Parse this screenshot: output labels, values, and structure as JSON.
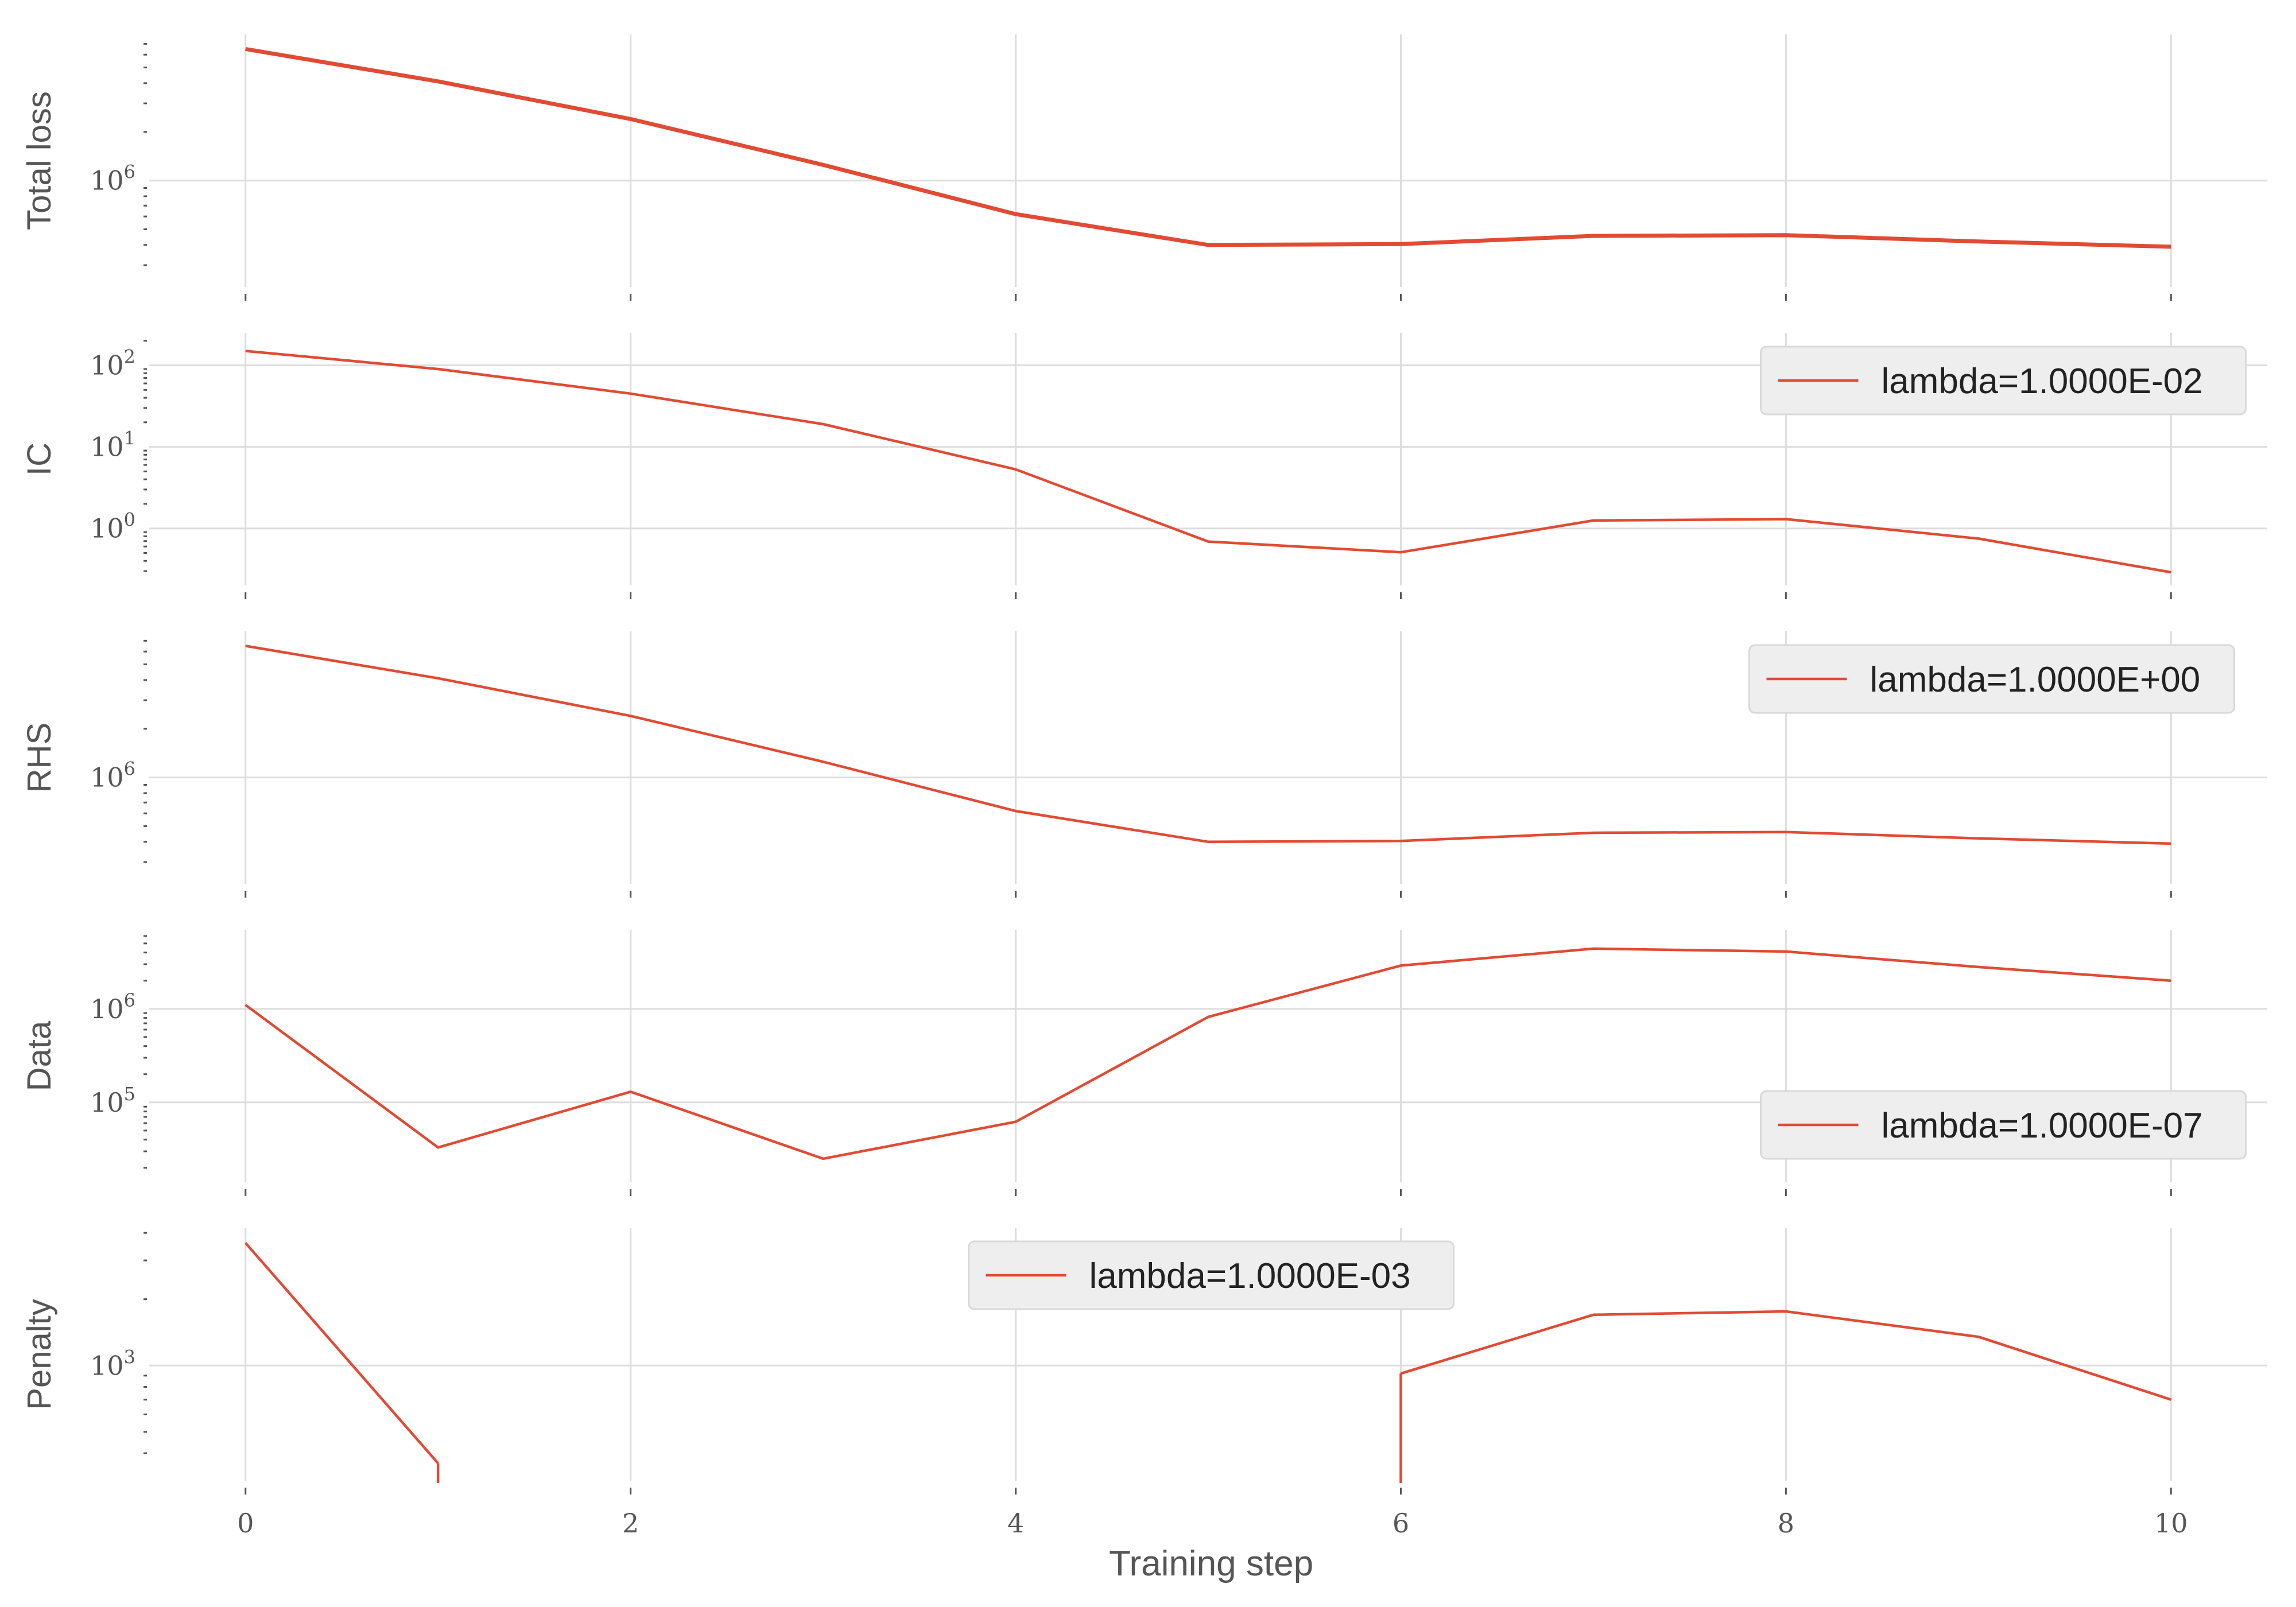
{
  "figure": {
    "xlabel": "Training step",
    "line_color": "#E24A33",
    "grid_color": "#DDDDDD",
    "legend_bg": "#EEEEEE",
    "legend_edge": "#D9D9D9"
  },
  "chart_data": [
    {
      "type": "line",
      "ylabel": "Total loss",
      "yscale": "log",
      "ylim": [
        220000,
        8000000
      ],
      "yticks": [
        {
          "value": 1000000,
          "label": "10^6"
        }
      ],
      "xlim": [
        -0.5,
        10.5
      ],
      "xticks": [
        0,
        2,
        4,
        6,
        8,
        10
      ],
      "show_xticklabels": false,
      "legend": null,
      "series": [
        {
          "x": [
            0,
            1,
            2,
            3,
            4,
            5,
            6,
            7,
            8,
            9,
            10
          ],
          "values": [
            6500000,
            4100000,
            2400000,
            1250000,
            620000,
            400000,
            405000,
            455000,
            460000,
            420000,
            390000
          ]
        }
      ]
    },
    {
      "type": "line",
      "ylabel": "IC",
      "yscale": "log",
      "ylim": [
        0.2,
        250
      ],
      "yticks": [
        {
          "value": 1,
          "label": "10^0"
        },
        {
          "value": 10,
          "label": "10^1"
        },
        {
          "value": 100,
          "label": "10^2"
        }
      ],
      "xlim": [
        -0.5,
        10.5
      ],
      "xticks": [
        0,
        2,
        4,
        6,
        8,
        10
      ],
      "show_xticklabels": false,
      "legend": {
        "label": "lambda=1.0000E-02",
        "loc": "upper right"
      },
      "series": [
        {
          "name": "lambda=1.0000E-02",
          "x": [
            0,
            1,
            2,
            3,
            4,
            5,
            6,
            7,
            8,
            9,
            10
          ],
          "values": [
            150,
            90,
            45,
            19,
            5.3,
            0.69,
            0.51,
            1.25,
            1.3,
            0.75,
            0.29
          ]
        }
      ]
    },
    {
      "type": "line",
      "ylabel": "RHS",
      "yscale": "log",
      "ylim": [
        220000,
        8000000
      ],
      "yticks": [
        {
          "value": 1000000,
          "label": "10^6"
        }
      ],
      "xlim": [
        -0.5,
        10.5
      ],
      "xticks": [
        0,
        2,
        4,
        6,
        8,
        10
      ],
      "show_xticklabels": false,
      "legend": {
        "label": "lambda=1.0000E+00",
        "loc": "upper right"
      },
      "series": [
        {
          "name": "lambda=1.0000E+00",
          "x": [
            0,
            1,
            2,
            3,
            4,
            5,
            6,
            7,
            8,
            9,
            10
          ],
          "values": [
            6500000,
            4100000,
            2400000,
            1250000,
            620000,
            400000,
            405000,
            455000,
            460000,
            420000,
            390000
          ]
        }
      ]
    },
    {
      "type": "line",
      "ylabel": "Data",
      "yscale": "log",
      "ylim": [
        14000,
        7000000
      ],
      "yticks": [
        {
          "value": 100000,
          "label": "10^5"
        },
        {
          "value": 1000000,
          "label": "10^6"
        }
      ],
      "xlim": [
        -0.5,
        10.5
      ],
      "xticks": [
        0,
        2,
        4,
        6,
        8,
        10
      ],
      "show_xticklabels": false,
      "legend": {
        "label": "lambda=1.0000E-07",
        "loc": "lower right"
      },
      "series": [
        {
          "name": "lambda=1.0000E-07",
          "x": [
            0,
            1,
            2,
            3,
            4,
            5,
            6,
            7,
            8,
            9,
            10
          ],
          "values": [
            1100000,
            33000,
            130000,
            25000,
            62000,
            820000,
            2900000,
            4400000,
            4100000,
            2800000,
            2000000
          ]
        }
      ]
    },
    {
      "type": "line",
      "ylabel": "Penalty",
      "yscale": "log",
      "ylim": [
        300,
        4200
      ],
      "yticks": [
        {
          "value": 1000,
          "label": "10^3"
        }
      ],
      "xlim": [
        -0.5,
        10.5
      ],
      "xticks": [
        0,
        2,
        4,
        6,
        8,
        10
      ],
      "show_xticklabels": true,
      "legend": {
        "label": "lambda=1.0000E-03",
        "loc": "upper center"
      },
      "series": [
        {
          "name": "lambda=1.0000E-03",
          "x": [
            0,
            1,
            2,
            3,
            4,
            5,
            6,
            7,
            8,
            9,
            10
          ],
          "values": [
            3600,
            360,
            null,
            null,
            null,
            null,
            920,
            1700,
            1760,
            1350,
            700
          ],
          "drops_below_axis_after": [
            1,
            6
          ]
        }
      ]
    }
  ]
}
